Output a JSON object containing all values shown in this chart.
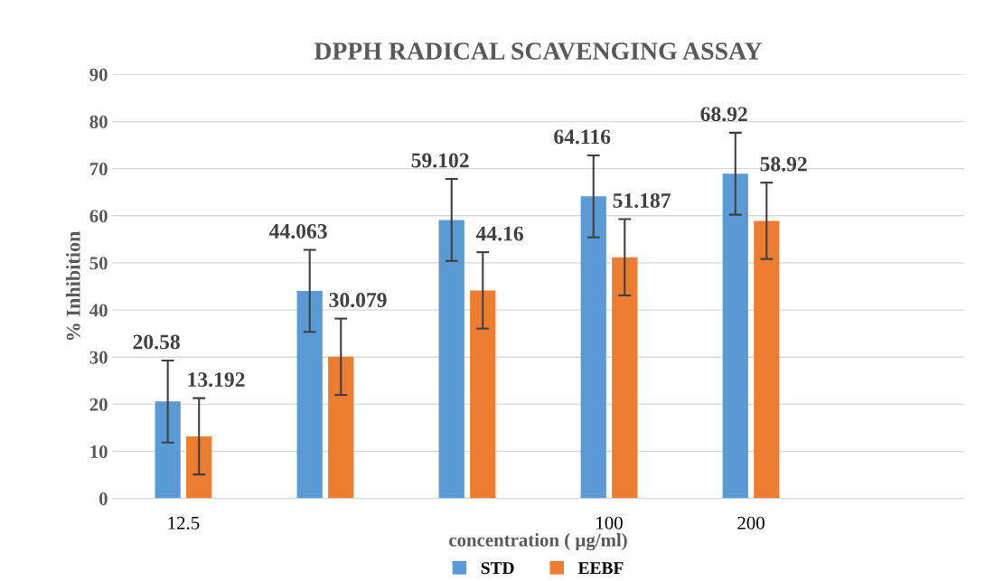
{
  "chart_data": {
    "type": "bar",
    "title": "DPPH RADICAL SCAVENGING ASSAY",
    "xlabel": "concentration ( µg/ml)",
    "ylabel": "% Inhibition",
    "categories": [
      "12.5",
      null,
      null,
      "100",
      "200",
      null
    ],
    "series": [
      {
        "name": "STD",
        "color": "#5b9bd5",
        "values": [
          20.58,
          44.063,
          59.102,
          64.116,
          68.92,
          null
        ],
        "errors": [
          8.7,
          8.7,
          8.7,
          8.7,
          8.7,
          null
        ]
      },
      {
        "name": "EEBF",
        "color": "#ed7d31",
        "values": [
          13.192,
          30.079,
          44.16,
          51.187,
          58.92,
          null
        ],
        "errors": [
          8.1,
          8.1,
          8.1,
          8.1,
          8.1,
          null
        ]
      }
    ],
    "ylim": [
      0,
      90
    ],
    "yticks": [
      0,
      10,
      20,
      30,
      40,
      50,
      60,
      70,
      80,
      90
    ],
    "grid": "y",
    "legend": "bottom",
    "data_labels": true
  }
}
